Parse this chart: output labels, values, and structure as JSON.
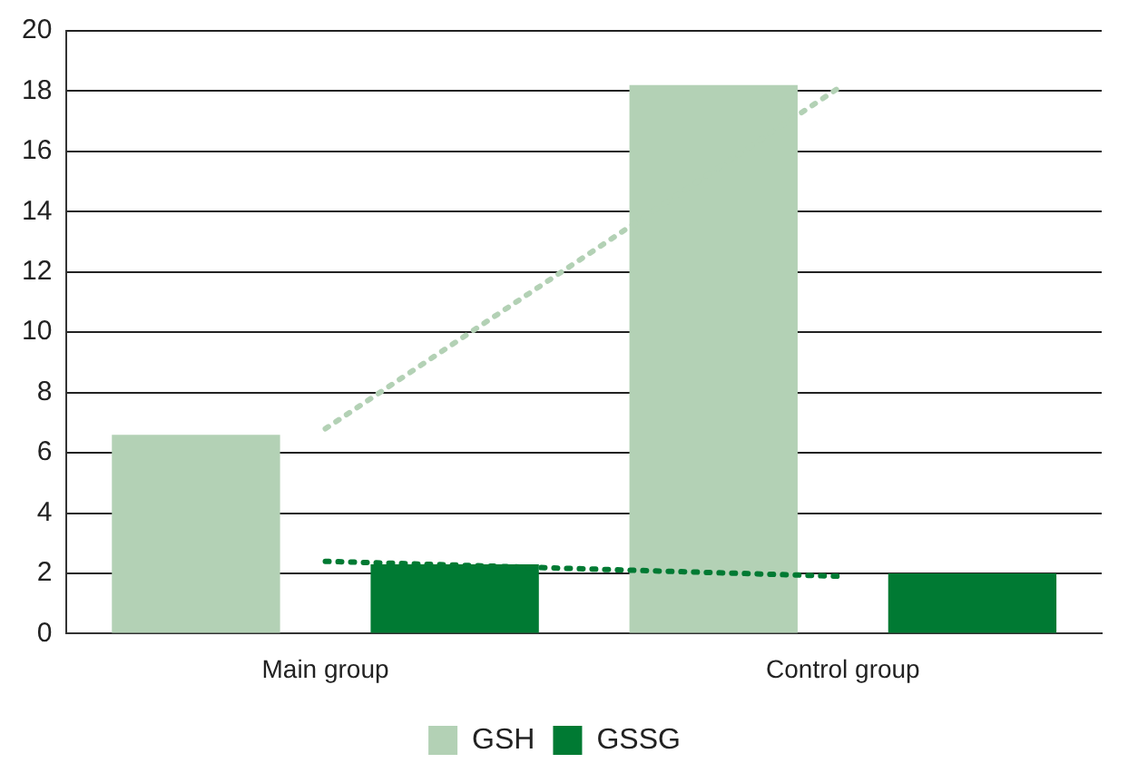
{
  "chart_data": {
    "type": "bar",
    "categories": [
      "Main group",
      "Control group"
    ],
    "series": [
      {
        "name": "GSH",
        "color": "#b3d1b5",
        "values": [
          6.6,
          18.2
        ]
      },
      {
        "name": "GSSG",
        "color": "#007a33",
        "values": [
          2.3,
          2.0
        ]
      },
      {
        "type": "line",
        "color": "#b3d1b5",
        "values": [
          6.8,
          18.2
        ],
        "line_style": "dotted",
        "marker": "none"
      },
      {
        "type": "line",
        "color": "#007a33",
        "values": [
          2.4,
          1.9
        ],
        "line_style": "dotted",
        "marker": "none"
      }
    ],
    "ylim": [
      0,
      20
    ],
    "yticks": [
      0,
      2,
      4,
      6,
      8,
      10,
      12,
      14,
      16,
      18,
      20
    ],
    "grid": "y",
    "legend": "bottom"
  }
}
